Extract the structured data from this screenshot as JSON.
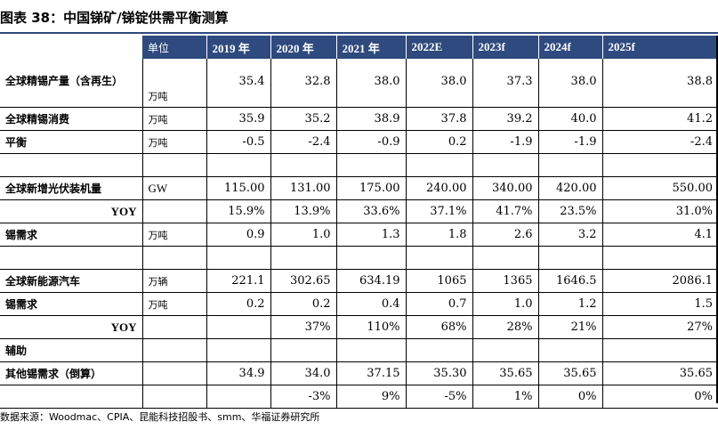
{
  "title": "图表 38：中国锑矿/锑锭供需平衡测算",
  "header": {
    "unit_label": "单位",
    "years": [
      "2019 年",
      "2020 年",
      "2021 年",
      "2022E",
      "2023f",
      "2024f",
      "2025f"
    ]
  },
  "rows": [
    {
      "label": "全球精锡产量（含再生）",
      "unit": "万吨",
      "values": [
        "35.4",
        "32.8",
        "38.0",
        "38.0",
        "37.3",
        "38.0",
        "38.8"
      ]
    },
    {
      "label": "全球精锡消费",
      "unit": "万吨",
      "values": [
        "35.9",
        "35.2",
        "38.9",
        "37.8",
        "39.2",
        "40.0",
        "41.2"
      ]
    },
    {
      "label": "平衡",
      "unit": "万吨",
      "values": [
        "-0.5",
        "-2.4",
        "-0.9",
        "0.2",
        "-1.9",
        "-1.9",
        "-2.4"
      ]
    },
    {
      "label": "",
      "unit": "",
      "values": [
        "",
        "",
        "",
        "",
        "",
        "",
        ""
      ]
    },
    {
      "label": "全球新增光伏装机量",
      "unit": "GW",
      "values": [
        "115.00",
        "131.00",
        "175.00",
        "240.00",
        "340.00",
        "420.00",
        "550.00"
      ]
    },
    {
      "label": "YOY",
      "unit": "",
      "values": [
        "15.9%",
        "13.9%",
        "33.6%",
        "37.1%",
        "41.7%",
        "23.5%",
        "31.0%"
      ]
    },
    {
      "label": "锡需求",
      "unit": "万吨",
      "values": [
        "0.9",
        "1.0",
        "1.3",
        "1.8",
        "2.6",
        "3.2",
        "4.1"
      ]
    },
    {
      "label": "",
      "unit": "",
      "values": [
        "",
        "",
        "",
        "",
        "",
        "",
        ""
      ]
    },
    {
      "label": "全球新能源汽车",
      "unit": "万辆",
      "values": [
        "221.1",
        "302.65",
        "634.19",
        "1065",
        "1365",
        "1646.5",
        "2086.1"
      ]
    },
    {
      "label": "锡需求",
      "unit": "万吨",
      "values": [
        "0.2",
        "0.2",
        "0.4",
        "0.7",
        "1.0",
        "1.2",
        "1.5"
      ]
    },
    {
      "label": "YOY",
      "unit": "",
      "values": [
        "",
        "37%",
        "110%",
        "68%",
        "28%",
        "21%",
        "27%"
      ]
    },
    {
      "label": "辅助",
      "unit": "",
      "values": [
        "",
        "",
        "",
        "",
        "",
        "",
        ""
      ]
    },
    {
      "label": "其他锡需求（倒算）",
      "unit": "",
      "values": [
        "34.9",
        "34.0",
        "37.15",
        "35.30",
        "35.65",
        "35.65",
        "35.65"
      ]
    },
    {
      "label": "",
      "unit": "",
      "values": [
        "",
        "-3%",
        "9%",
        "-5%",
        "1%",
        "0%",
        "0%"
      ]
    }
  ],
  "footer": "数据来源：Woodmac、CPIA、昆能科技招股书、smm、华福证券研究所"
}
